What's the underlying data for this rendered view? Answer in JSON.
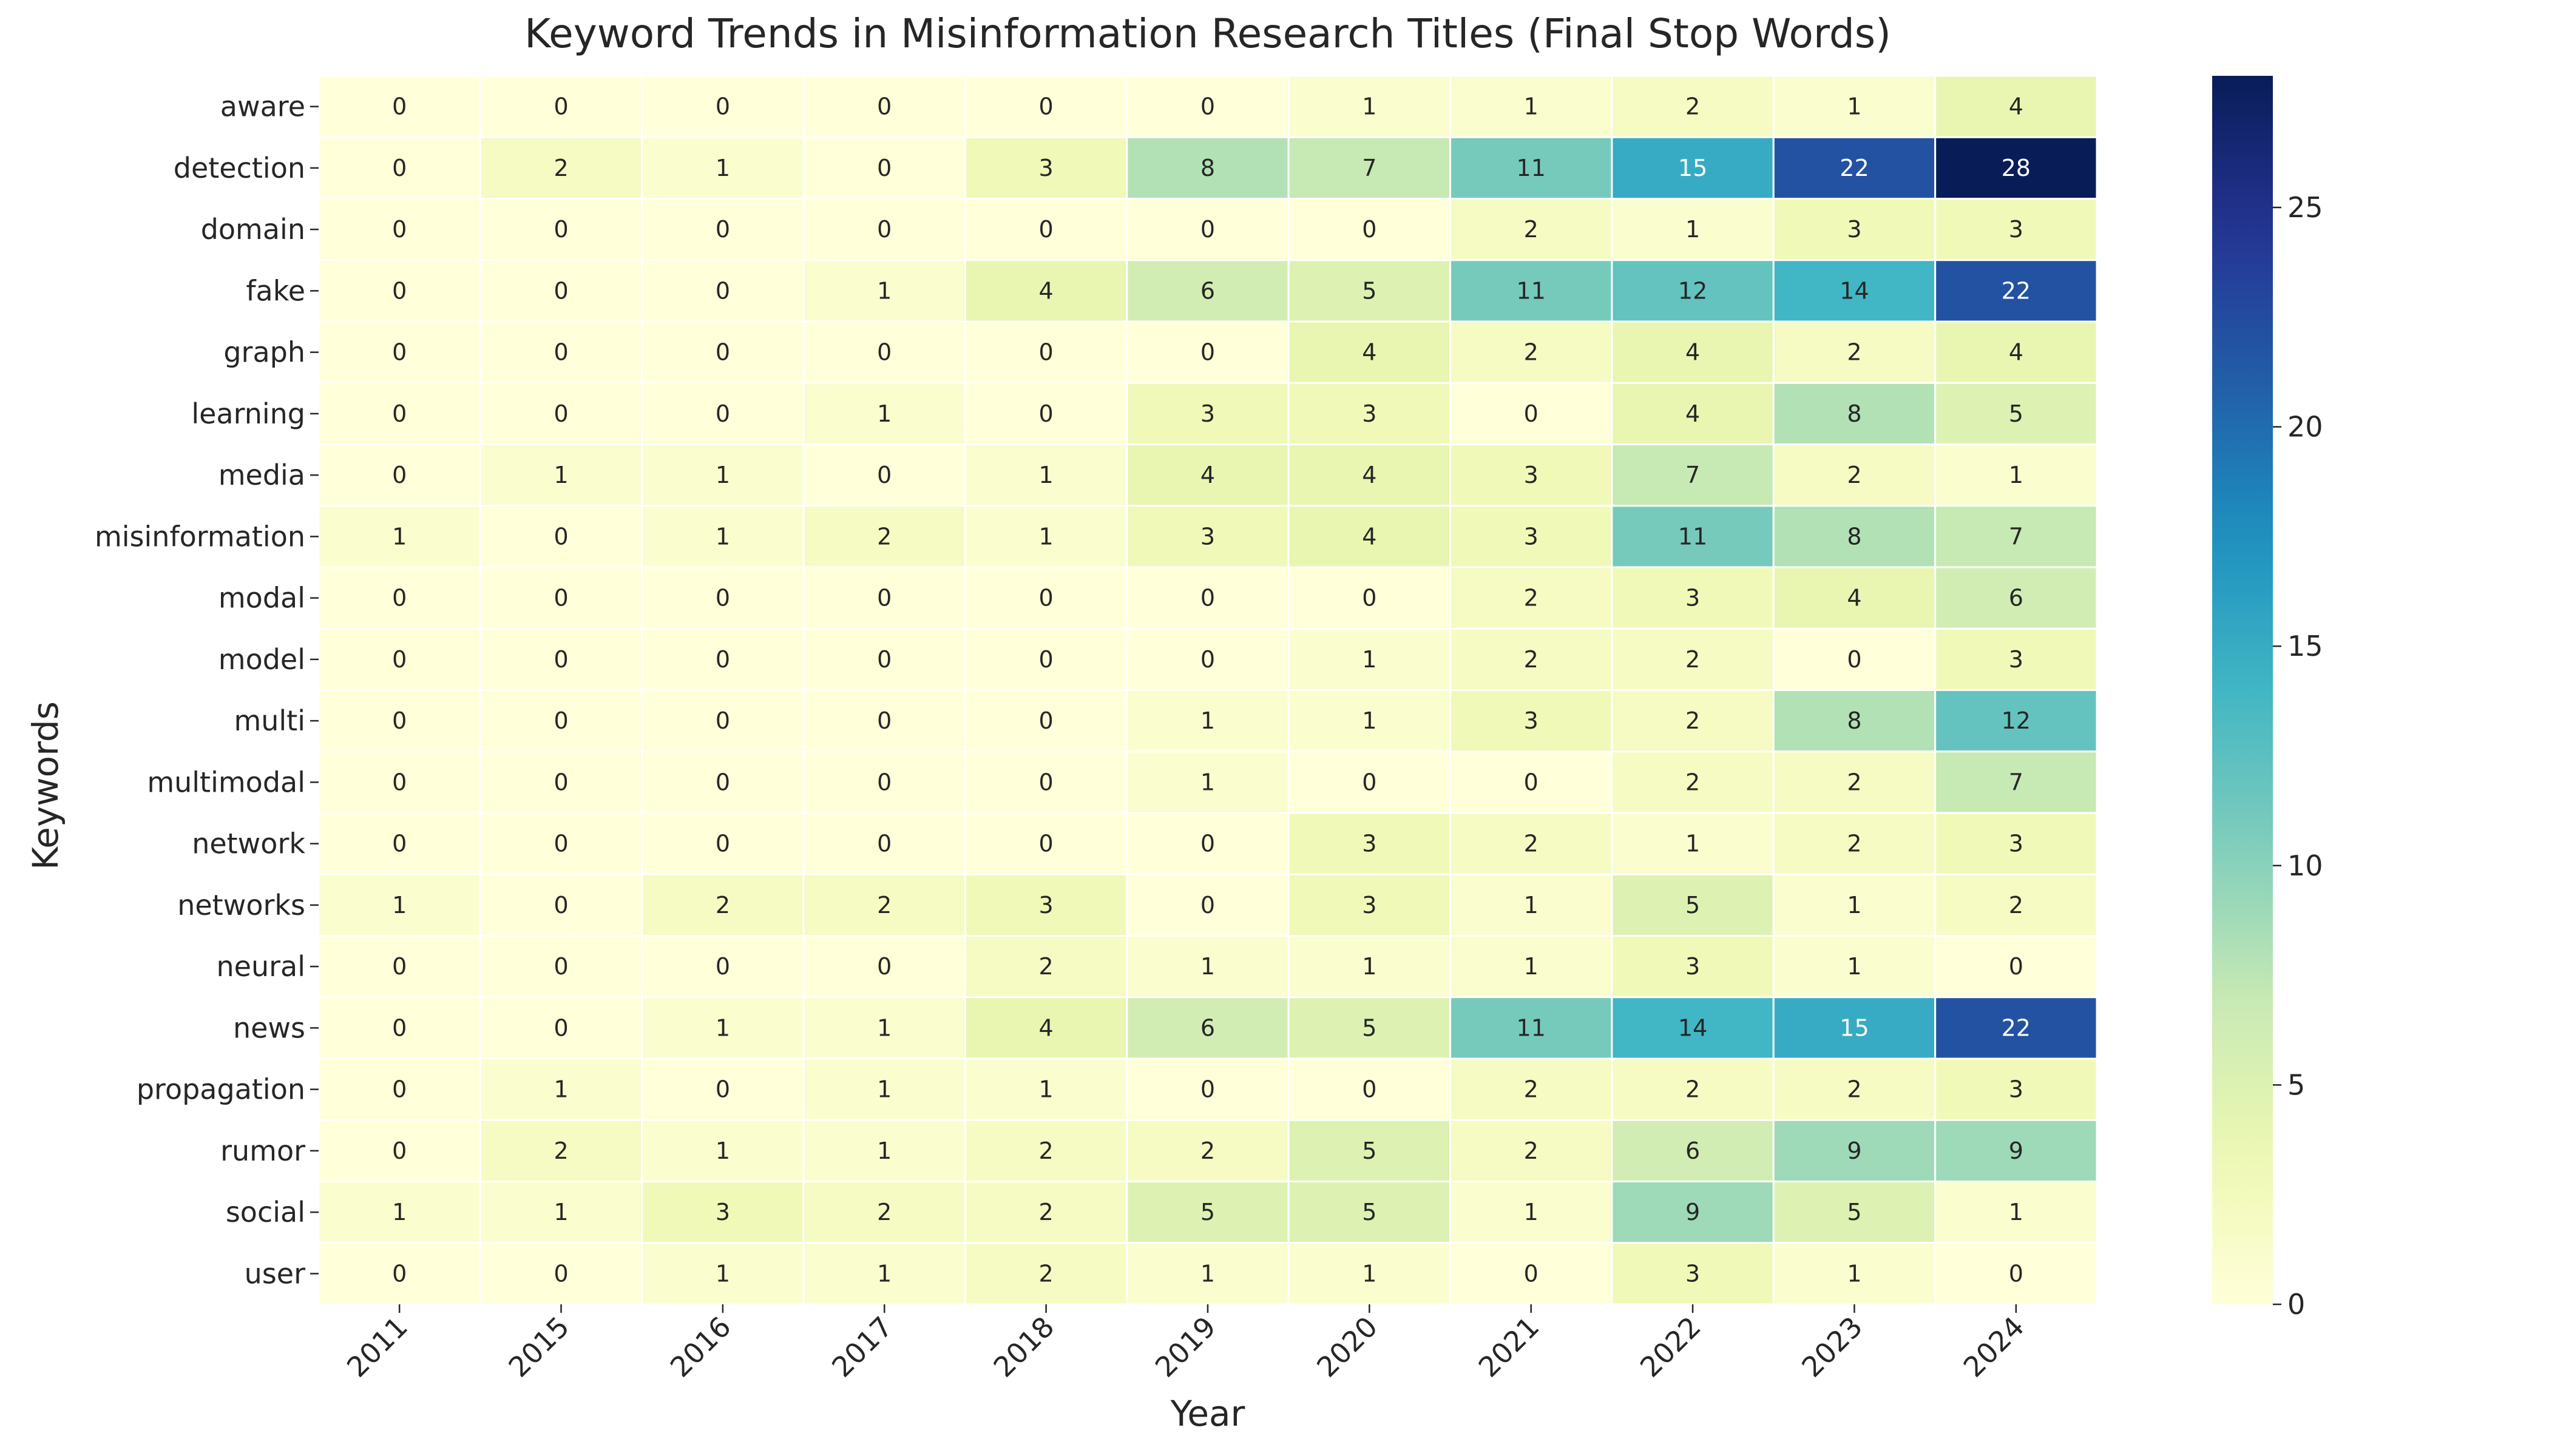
{
  "chart_data": {
    "type": "heatmap",
    "title": "Keyword Trends in Misinformation Research Titles (Final Stop Words)",
    "xlabel": "Year",
    "ylabel": "Keywords",
    "x": [
      "2011",
      "2015",
      "2016",
      "2017",
      "2018",
      "2019",
      "2020",
      "2021",
      "2022",
      "2023",
      "2024"
    ],
    "y": [
      "aware",
      "detection",
      "domain",
      "fake",
      "graph",
      "learning",
      "media",
      "misinformation",
      "modal",
      "model",
      "multi",
      "multimodal",
      "network",
      "networks",
      "neural",
      "news",
      "propagation",
      "rumor",
      "social",
      "user"
    ],
    "values": [
      [
        0,
        0,
        0,
        0,
        0,
        0,
        1,
        1,
        2,
        1,
        4
      ],
      [
        0,
        2,
        1,
        0,
        3,
        8,
        7,
        11,
        15,
        22,
        28
      ],
      [
        0,
        0,
        0,
        0,
        0,
        0,
        0,
        2,
        1,
        3,
        3
      ],
      [
        0,
        0,
        0,
        1,
        4,
        6,
        5,
        11,
        12,
        14,
        22
      ],
      [
        0,
        0,
        0,
        0,
        0,
        0,
        4,
        2,
        4,
        2,
        4
      ],
      [
        0,
        0,
        0,
        1,
        0,
        3,
        3,
        0,
        4,
        8,
        5
      ],
      [
        0,
        1,
        1,
        0,
        1,
        4,
        4,
        3,
        7,
        2,
        1
      ],
      [
        1,
        0,
        1,
        2,
        1,
        3,
        4,
        3,
        11,
        8,
        7
      ],
      [
        0,
        0,
        0,
        0,
        0,
        0,
        0,
        2,
        3,
        4,
        6
      ],
      [
        0,
        0,
        0,
        0,
        0,
        0,
        1,
        2,
        2,
        0,
        3
      ],
      [
        0,
        0,
        0,
        0,
        0,
        1,
        1,
        3,
        2,
        8,
        12
      ],
      [
        0,
        0,
        0,
        0,
        0,
        1,
        0,
        0,
        2,
        2,
        7
      ],
      [
        0,
        0,
        0,
        0,
        0,
        0,
        3,
        2,
        1,
        2,
        3
      ],
      [
        1,
        0,
        2,
        2,
        3,
        0,
        3,
        1,
        5,
        1,
        2
      ],
      [
        0,
        0,
        0,
        0,
        2,
        1,
        1,
        1,
        3,
        1,
        0
      ],
      [
        0,
        0,
        1,
        1,
        4,
        6,
        5,
        11,
        14,
        15,
        22
      ],
      [
        0,
        1,
        0,
        1,
        1,
        0,
        0,
        2,
        2,
        2,
        3
      ],
      [
        0,
        2,
        1,
        1,
        2,
        2,
        5,
        2,
        6,
        9,
        9
      ],
      [
        1,
        1,
        3,
        2,
        2,
        5,
        5,
        1,
        9,
        5,
        1
      ],
      [
        0,
        0,
        1,
        1,
        2,
        1,
        1,
        0,
        3,
        1,
        0
      ]
    ],
    "colormap": "YlGnBu",
    "vmin": 0,
    "vmax": 28,
    "colorbar_ticks": [
      0,
      5,
      10,
      15,
      20,
      25
    ],
    "annotate": true,
    "grid": false
  }
}
